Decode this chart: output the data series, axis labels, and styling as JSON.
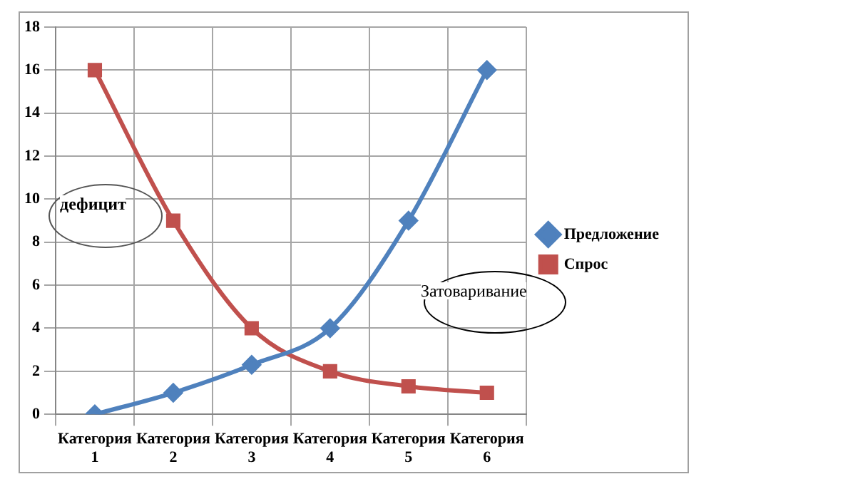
{
  "chart_data": {
    "type": "line",
    "categories": [
      "Категория 1",
      "Категория 2",
      "Категория 3",
      "Категория 4",
      "Категория 5",
      "Категория 6"
    ],
    "series": [
      {
        "name": "Предложение",
        "color": "#4f81bd",
        "marker": "diamond",
        "values": [
          0,
          1,
          2.3,
          4,
          9,
          16
        ]
      },
      {
        "name": "Спрос",
        "color": "#c0504d",
        "marker": "square",
        "values": [
          16,
          9,
          4,
          2,
          1.3,
          1
        ]
      }
    ],
    "ylim": [
      0,
      18
    ],
    "yticks": [
      0,
      2,
      4,
      6,
      8,
      10,
      12,
      14,
      16,
      18
    ],
    "grid": true,
    "legend": "right",
    "line_style": "solid",
    "annotations": [
      "дефицит",
      "Затоваривание"
    ]
  }
}
